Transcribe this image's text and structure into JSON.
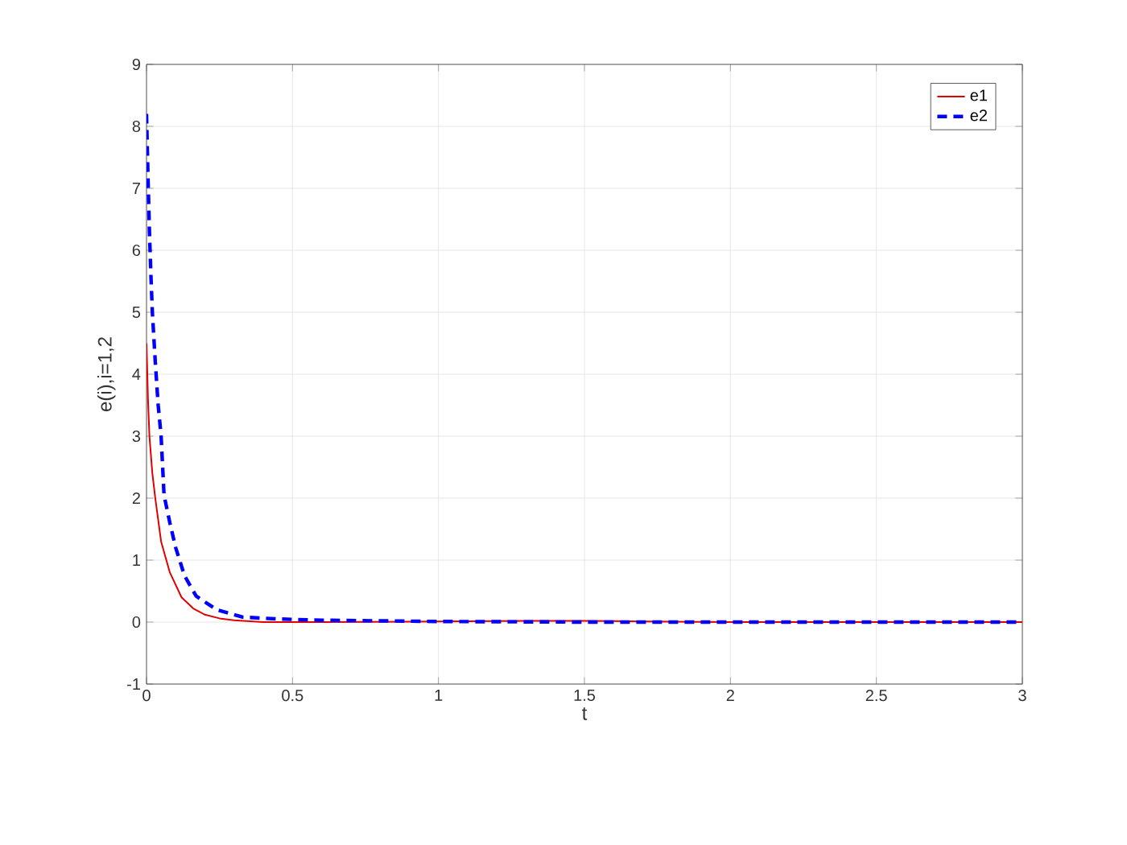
{
  "chart_data": {
    "type": "line",
    "xlabel": "t",
    "ylabel": "e(i),i=1,2",
    "xlim": [
      0,
      3
    ],
    "ylim": [
      -1,
      9
    ],
    "xticks": [
      0,
      0.5,
      1,
      1.5,
      2,
      2.5,
      3
    ],
    "yticks": [
      -1,
      0,
      1,
      2,
      3,
      4,
      5,
      6,
      7,
      8,
      9
    ],
    "grid": true,
    "legend": "top right",
    "series": [
      {
        "name": "e1",
        "color": "#e00000",
        "line_style": "solid",
        "x": [
          0,
          0.005,
          0.01,
          0.02,
          0.03,
          0.05,
          0.08,
          0.12,
          0.16,
          0.2,
          0.25,
          0.3,
          0.4,
          0.6,
          1.0,
          1.3,
          1.5,
          1.7,
          2.0,
          2.5,
          3.0
        ],
        "values": [
          4.5,
          3.6,
          3.0,
          2.4,
          2.0,
          1.3,
          0.8,
          0.4,
          0.22,
          0.12,
          0.06,
          0.03,
          0.0,
          0.0,
          0.01,
          0.02,
          0.02,
          0.01,
          0.0,
          0.0,
          0.0
        ]
      },
      {
        "name": "e2",
        "color": "#0000ff",
        "line_style": "dashed",
        "x": [
          0,
          0.005,
          0.01,
          0.015,
          0.02,
          0.03,
          0.04,
          0.05,
          0.06,
          0.08,
          0.1,
          0.13,
          0.17,
          0.24,
          0.33,
          0.45,
          0.6,
          1.0,
          1.5,
          2.0,
          2.5,
          3.0
        ],
        "values": [
          8.2,
          7.2,
          6.3,
          5.6,
          5.0,
          4.2,
          3.5,
          3.0,
          2.05,
          1.6,
          1.2,
          0.75,
          0.42,
          0.2,
          0.08,
          0.05,
          0.03,
          0.01,
          0.0,
          0.0,
          0.0,
          0.0
        ]
      }
    ]
  }
}
